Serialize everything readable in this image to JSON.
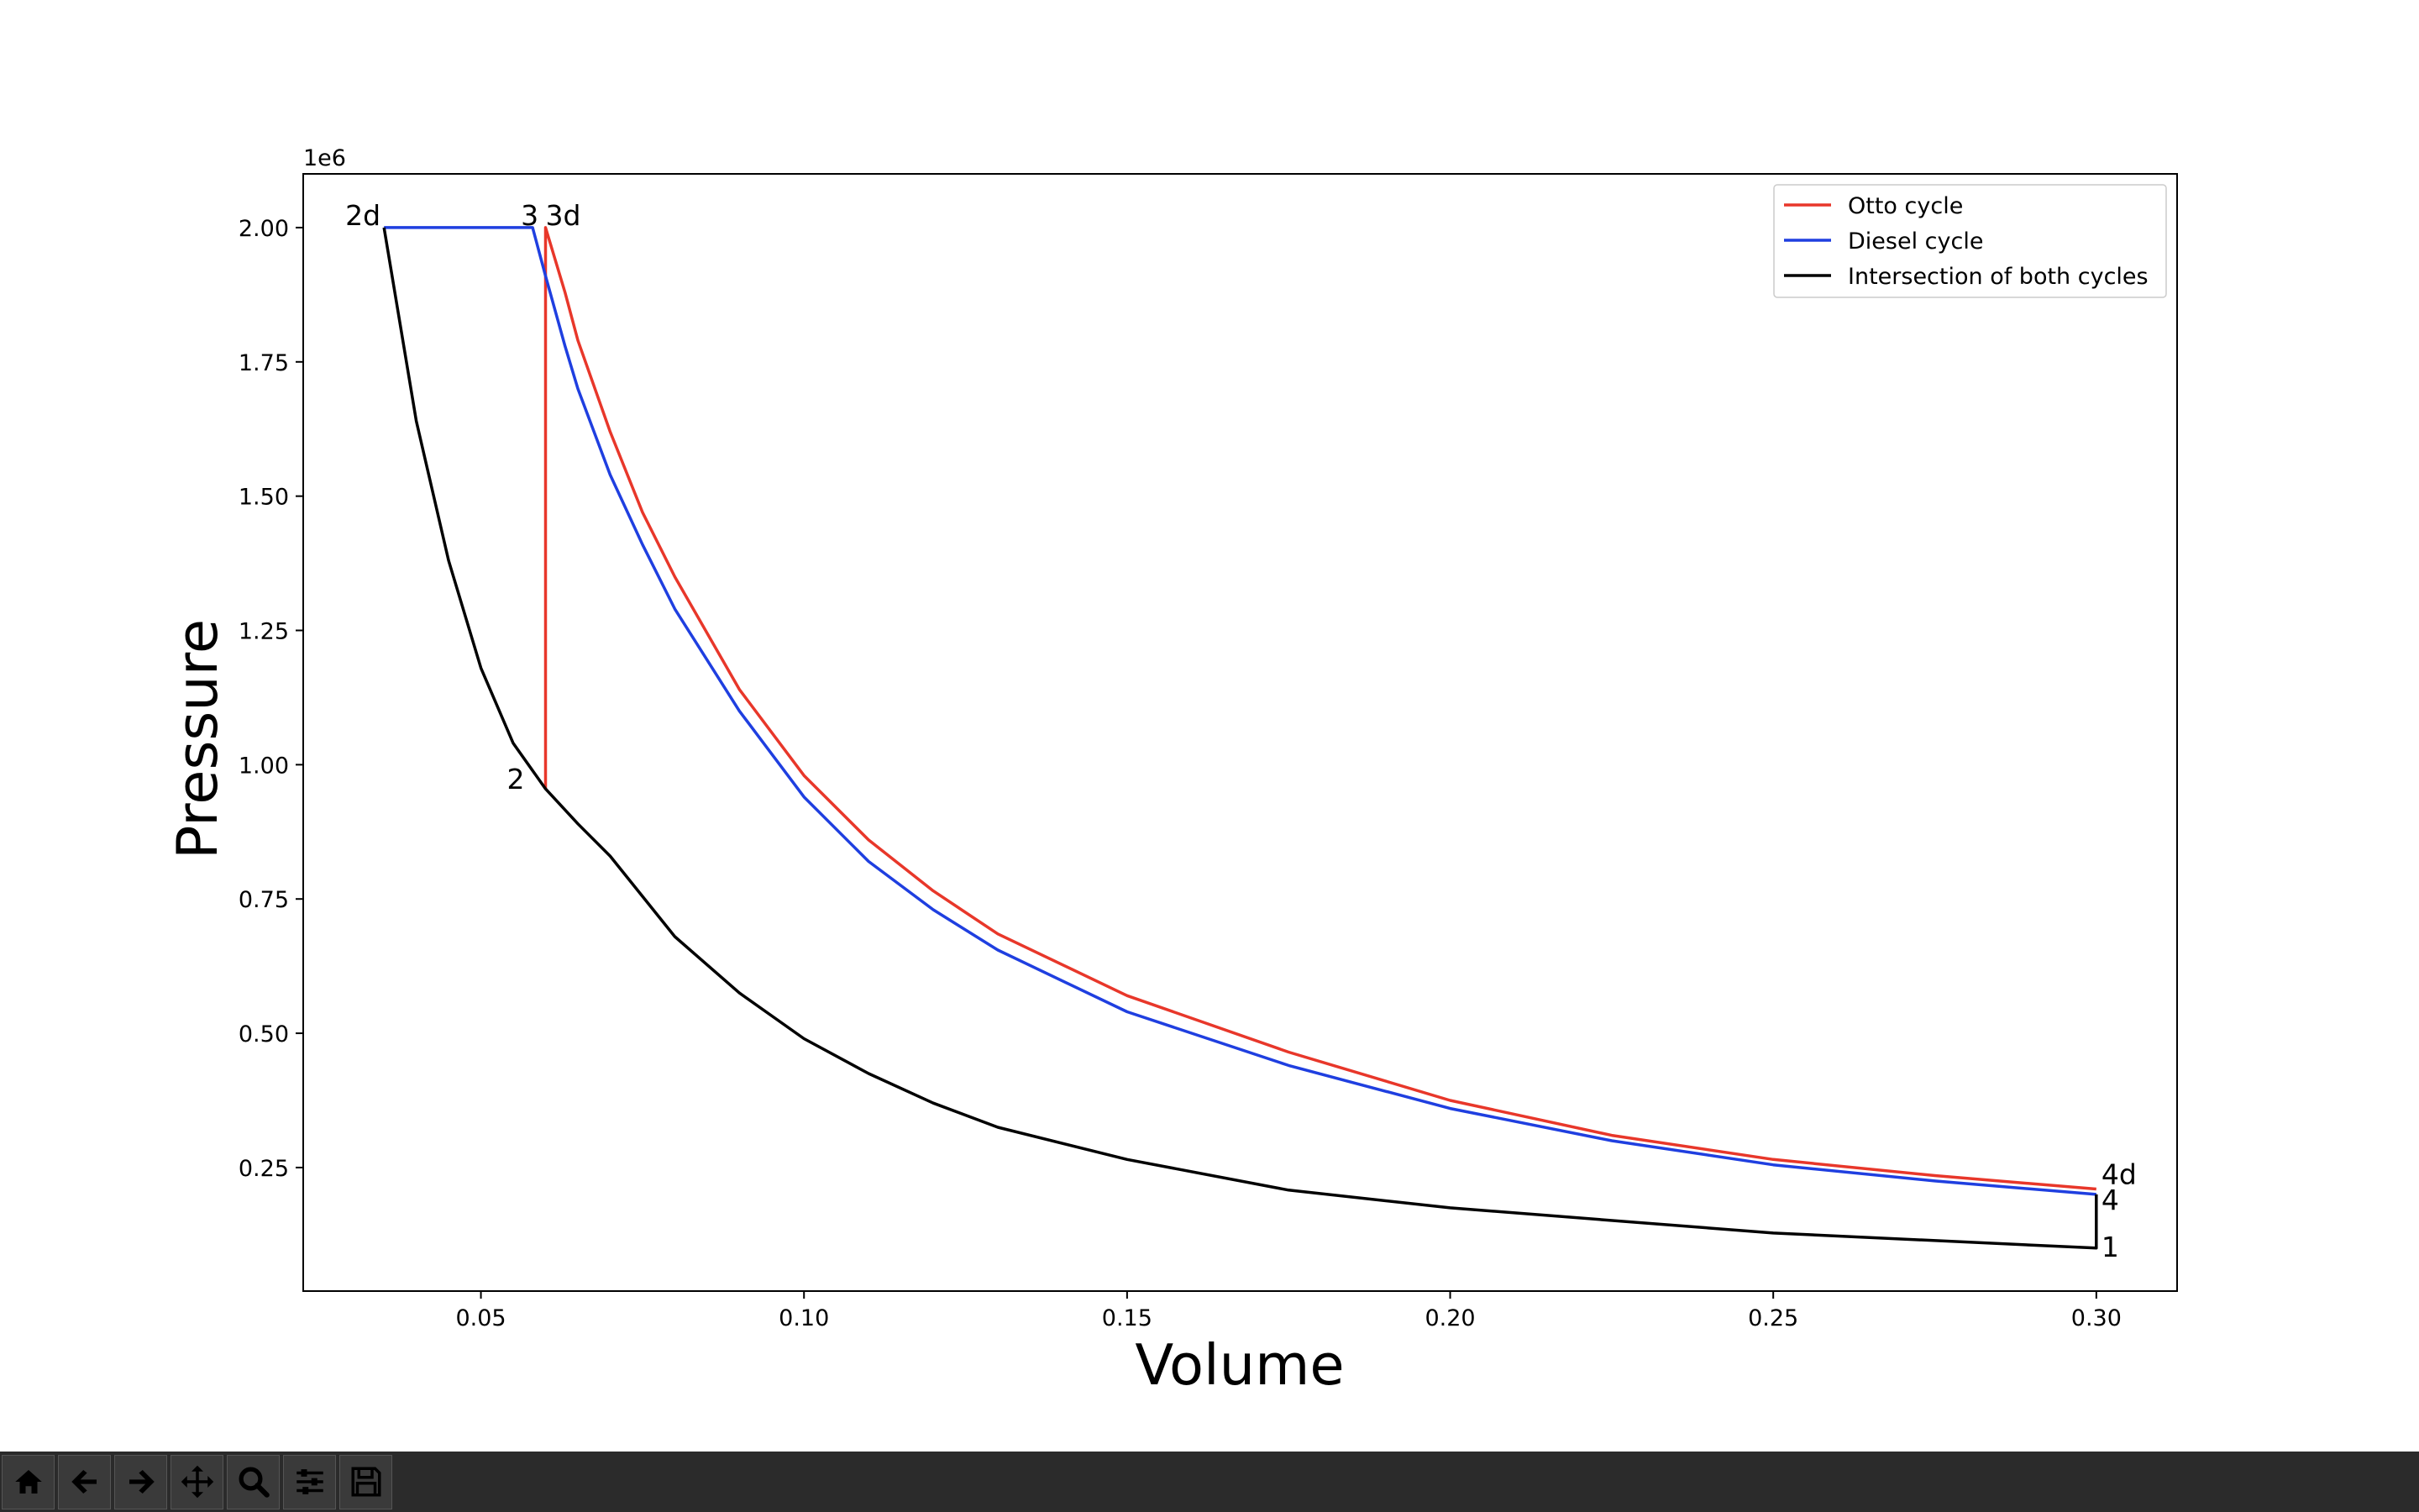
{
  "chart_data": {
    "type": "line",
    "title": "",
    "xlabel": "Volume",
    "ylabel": "Pressure",
    "y_offset_text": "1e6",
    "xlim": [
      0.0225,
      0.3125
    ],
    "ylim": [
      0.02,
      2.1
    ],
    "x_ticks": [
      0.05,
      0.1,
      0.15,
      0.2,
      0.25,
      0.3
    ],
    "x_tick_labels": [
      "0.05",
      "0.10",
      "0.15",
      "0.20",
      "0.25",
      "0.30"
    ],
    "y_ticks": [
      0.25,
      0.5,
      0.75,
      1.0,
      1.25,
      1.5,
      1.75,
      2.0
    ],
    "y_tick_labels": [
      "0.25",
      "0.50",
      "0.75",
      "1.00",
      "1.25",
      "1.50",
      "1.75",
      "2.00"
    ],
    "grid": false,
    "legend_position": "top-right",
    "series": [
      {
        "name": "Otto cycle",
        "color": "#e8372a",
        "points": [
          [
            0.06,
            0.955
          ],
          [
            0.06,
            2.0
          ],
          [
            0.063,
            1.88
          ],
          [
            0.065,
            1.79
          ],
          [
            0.07,
            1.62
          ],
          [
            0.075,
            1.47
          ],
          [
            0.08,
            1.35
          ],
          [
            0.09,
            1.14
          ],
          [
            0.1,
            0.98
          ],
          [
            0.11,
            0.86
          ],
          [
            0.12,
            0.765
          ],
          [
            0.13,
            0.685
          ],
          [
            0.15,
            0.57
          ],
          [
            0.175,
            0.465
          ],
          [
            0.2,
            0.375
          ],
          [
            0.225,
            0.31
          ],
          [
            0.25,
            0.265
          ],
          [
            0.275,
            0.235
          ],
          [
            0.3,
            0.21
          ]
        ]
      },
      {
        "name": "Diesel cycle",
        "color": "#1f3fe0",
        "points": [
          [
            0.035,
            2.0
          ],
          [
            0.058,
            2.0
          ],
          [
            0.06,
            1.91
          ],
          [
            0.063,
            1.78
          ],
          [
            0.065,
            1.7
          ],
          [
            0.07,
            1.54
          ],
          [
            0.075,
            1.41
          ],
          [
            0.08,
            1.29
          ],
          [
            0.09,
            1.1
          ],
          [
            0.1,
            0.94
          ],
          [
            0.11,
            0.82
          ],
          [
            0.12,
            0.73
          ],
          [
            0.13,
            0.655
          ],
          [
            0.15,
            0.54
          ],
          [
            0.175,
            0.44
          ],
          [
            0.2,
            0.36
          ],
          [
            0.225,
            0.3
          ],
          [
            0.25,
            0.255
          ],
          [
            0.275,
            0.225
          ],
          [
            0.3,
            0.2
          ]
        ]
      },
      {
        "name": "Intersection of both cycles",
        "color": "#000000",
        "points": [
          [
            0.3,
            0.2
          ],
          [
            0.3,
            0.1
          ],
          [
            0.25,
            0.128
          ],
          [
            0.2,
            0.175
          ],
          [
            0.175,
            0.208
          ],
          [
            0.15,
            0.265
          ],
          [
            0.13,
            0.325
          ],
          [
            0.12,
            0.37
          ],
          [
            0.11,
            0.425
          ],
          [
            0.1,
            0.49
          ],
          [
            0.09,
            0.575
          ],
          [
            0.08,
            0.68
          ],
          [
            0.07,
            0.83
          ],
          [
            0.065,
            0.89
          ],
          [
            0.06,
            0.955
          ],
          [
            0.055,
            1.04
          ],
          [
            0.05,
            1.18
          ],
          [
            0.045,
            1.38
          ],
          [
            0.04,
            1.64
          ],
          [
            0.035,
            2.0
          ]
        ]
      }
    ],
    "annotations": [
      {
        "text": "2d",
        "x": 0.035,
        "y": 2.0
      },
      {
        "text": "3",
        "x": 0.058,
        "y": 2.0
      },
      {
        "text": "3d",
        "x": 0.06,
        "y": 2.0
      },
      {
        "text": "2",
        "x": 0.06,
        "y": 0.955
      },
      {
        "text": "4d",
        "x": 0.3,
        "y": 0.21
      },
      {
        "text": "4",
        "x": 0.3,
        "y": 0.2
      },
      {
        "text": "1",
        "x": 0.3,
        "y": 0.1
      }
    ]
  },
  "toolbar": {
    "buttons": [
      {
        "icon": "home-icon"
      },
      {
        "icon": "back-arrow-icon"
      },
      {
        "icon": "forward-arrow-icon"
      },
      {
        "icon": "pan-move-icon"
      },
      {
        "icon": "zoom-magnifier-icon"
      },
      {
        "icon": "configure-subplots-icon"
      },
      {
        "icon": "save-disk-icon"
      }
    ]
  }
}
